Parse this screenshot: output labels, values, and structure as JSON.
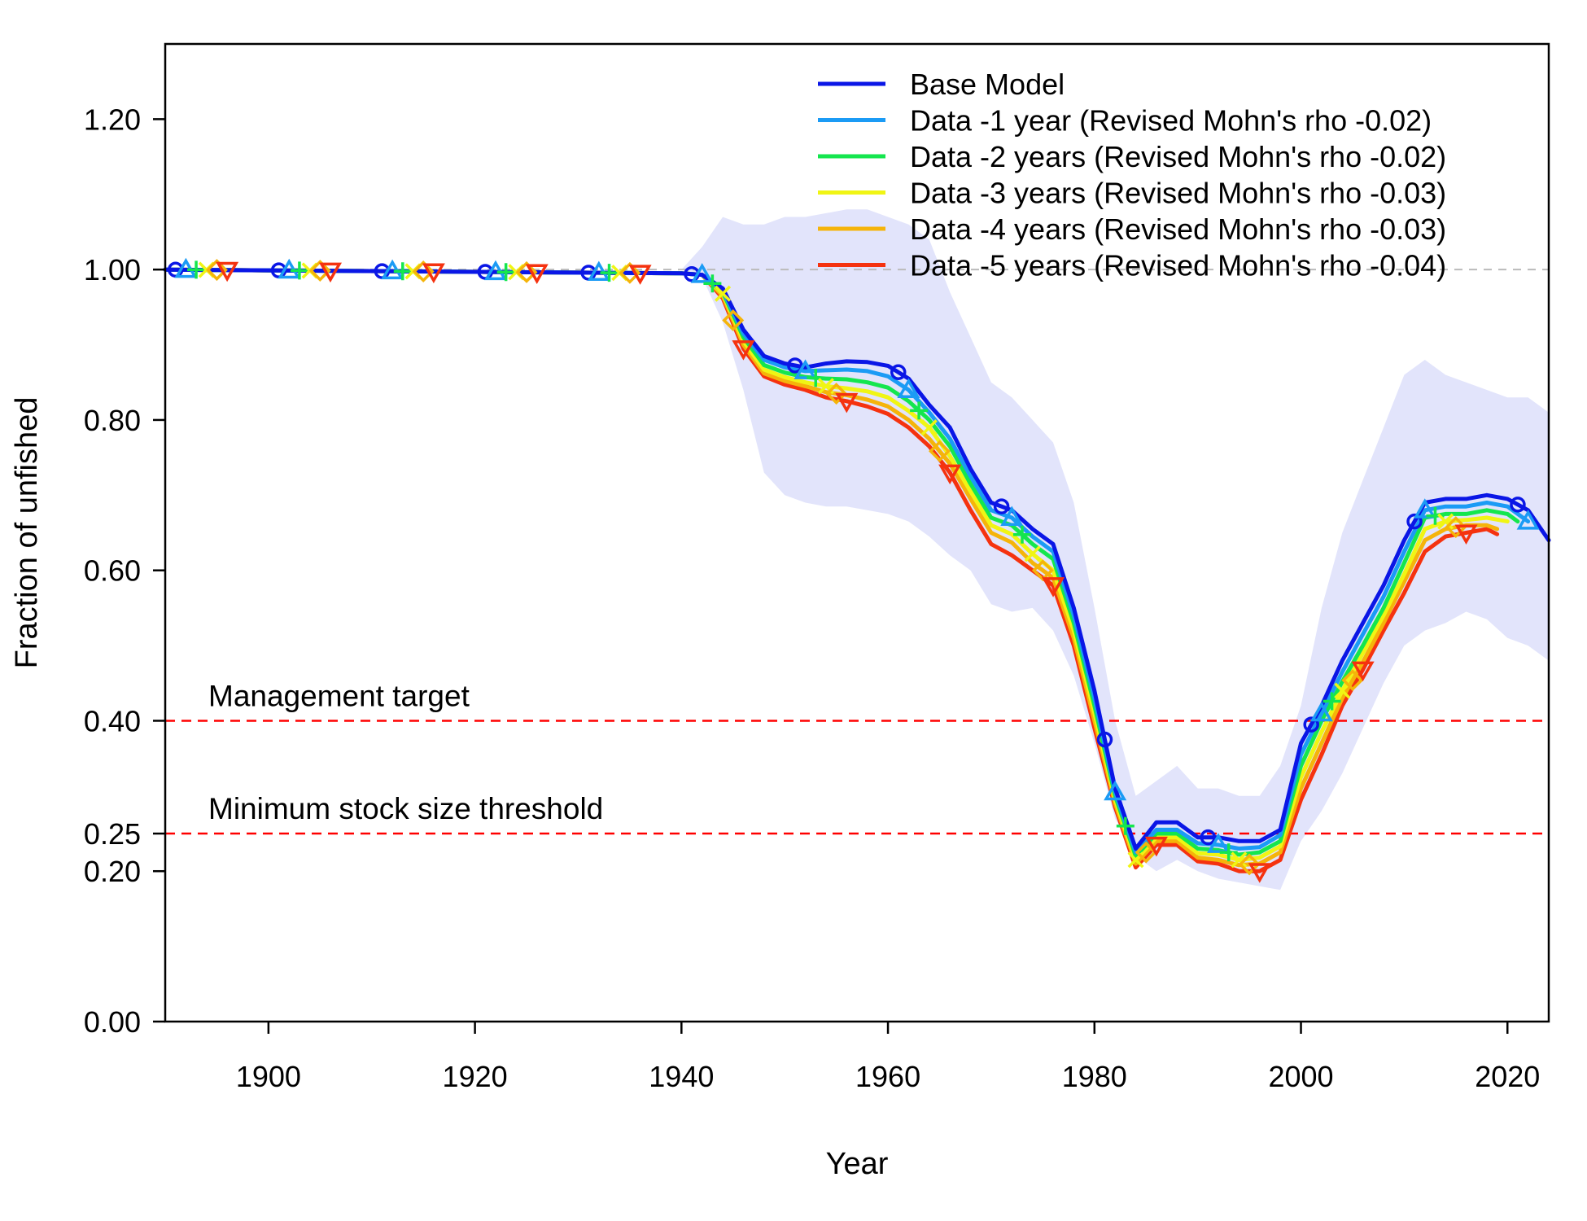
{
  "chart_data": {
    "type": "line",
    "xlabel": "Year",
    "ylabel": "Fraction of unfished",
    "xlim": [
      1890,
      2024
    ],
    "ylim": [
      0,
      1.3
    ],
    "xticks": [
      "1900",
      "1920",
      "1940",
      "1960",
      "1980",
      "2000",
      "2020"
    ],
    "yticks": [
      "0.00",
      "0.20",
      "0.25",
      "0.40",
      "0.60",
      "0.80",
      "1.00",
      "1.20"
    ],
    "reference_lines": [
      {
        "label": "Management target",
        "y": 0.4,
        "color": "#ff0000"
      },
      {
        "label": "Minimum stock size threshold",
        "y": 0.25,
        "color": "#ff0000"
      }
    ],
    "unfished_line": {
      "y": 1.0,
      "color": "#bbbbbb"
    },
    "confidence_band": {
      "color": "#e2e4fb",
      "x": [
        1940,
        1942,
        1944,
        1946,
        1948,
        1950,
        1952,
        1954,
        1956,
        1958,
        1960,
        1962,
        1964,
        1966,
        1968,
        1970,
        1972,
        1974,
        1976,
        1978,
        1980,
        1982,
        1984,
        1986,
        1988,
        1990,
        1992,
        1994,
        1996,
        1998,
        2000,
        2002,
        2004,
        2006,
        2008,
        2010,
        2012,
        2014,
        2016,
        2018,
        2020,
        2022,
        2024
      ],
      "upper": [
        1.0,
        1.03,
        1.07,
        1.06,
        1.06,
        1.07,
        1.07,
        1.075,
        1.08,
        1.08,
        1.07,
        1.06,
        1.04,
        0.97,
        0.91,
        0.85,
        0.83,
        0.8,
        0.77,
        0.69,
        0.55,
        0.4,
        0.3,
        0.32,
        0.34,
        0.31,
        0.31,
        0.3,
        0.3,
        0.34,
        0.42,
        0.55,
        0.65,
        0.72,
        0.79,
        0.86,
        0.88,
        0.86,
        0.85,
        0.84,
        0.83,
        0.83,
        0.81
      ],
      "lower": [
        1.0,
        0.99,
        0.93,
        0.84,
        0.73,
        0.7,
        0.69,
        0.685,
        0.685,
        0.68,
        0.675,
        0.665,
        0.645,
        0.62,
        0.6,
        0.555,
        0.545,
        0.55,
        0.52,
        0.46,
        0.37,
        0.27,
        0.22,
        0.2,
        0.215,
        0.2,
        0.19,
        0.185,
        0.18,
        0.175,
        0.24,
        0.28,
        0.33,
        0.39,
        0.45,
        0.5,
        0.52,
        0.53,
        0.545,
        0.535,
        0.51,
        0.5,
        0.48
      ]
    },
    "series": [
      {
        "name": "Base Model",
        "legend_label": "Base Model",
        "color": "#0a16e6",
        "marker": "circle",
        "x": [
          1890,
          1940,
          1942,
          1944,
          1946,
          1948,
          1950,
          1952,
          1954,
          1956,
          1958,
          1960,
          1962,
          1964,
          1966,
          1968,
          1970,
          1972,
          1974,
          1976,
          1978,
          1980,
          1982,
          1984,
          1986,
          1988,
          1990,
          1992,
          1994,
          1996,
          1998,
          2000,
          2002,
          2004,
          2006,
          2008,
          2010,
          2012,
          2014,
          2016,
          2018,
          2020,
          2022,
          2024
        ],
        "y": [
          1.0,
          0.995,
          0.993,
          0.975,
          0.92,
          0.885,
          0.875,
          0.87,
          0.875,
          0.878,
          0.877,
          0.872,
          0.855,
          0.82,
          0.79,
          0.735,
          0.69,
          0.68,
          0.655,
          0.635,
          0.55,
          0.44,
          0.31,
          0.23,
          0.265,
          0.265,
          0.245,
          0.245,
          0.24,
          0.24,
          0.255,
          0.37,
          0.42,
          0.48,
          0.53,
          0.58,
          0.64,
          0.69,
          0.695,
          0.695,
          0.7,
          0.695,
          0.68,
          0.64
        ]
      },
      {
        "name": "Data -1 year (Revised Mohn's rho -0.02)",
        "legend_label": "Data -1 year (Revised Mohn's rho -0.02)",
        "color": "#1b9bf5",
        "marker": "triangle",
        "x": [
          1890,
          1940,
          1942,
          1944,
          1946,
          1948,
          1950,
          1952,
          1954,
          1956,
          1958,
          1960,
          1962,
          1964,
          1966,
          1968,
          1970,
          1972,
          1974,
          1976,
          1978,
          1980,
          1982,
          1984,
          1986,
          1988,
          1990,
          1992,
          1994,
          1996,
          1998,
          2000,
          2002,
          2004,
          2006,
          2008,
          2010,
          2012,
          2014,
          2016,
          2018,
          2020,
          2022
        ],
        "y": [
          1.0,
          0.995,
          0.993,
          0.972,
          0.915,
          0.88,
          0.87,
          0.865,
          0.866,
          0.867,
          0.865,
          0.858,
          0.84,
          0.81,
          0.775,
          0.725,
          0.68,
          0.67,
          0.645,
          0.625,
          0.54,
          0.43,
          0.305,
          0.225,
          0.255,
          0.255,
          0.237,
          0.235,
          0.23,
          0.232,
          0.248,
          0.355,
          0.41,
          0.465,
          0.515,
          0.565,
          0.625,
          0.68,
          0.685,
          0.685,
          0.69,
          0.685,
          0.665
        ]
      },
      {
        "name": "Data -2 years (Revised Mohn's rho -0.02)",
        "legend_label": "Data -2 years (Revised Mohn's rho -0.02)",
        "color": "#14e64e",
        "marker": "plus",
        "x": [
          1890,
          1940,
          1942,
          1944,
          1946,
          1948,
          1950,
          1952,
          1954,
          1956,
          1958,
          1960,
          1962,
          1964,
          1966,
          1968,
          1970,
          1972,
          1974,
          1976,
          1978,
          1980,
          1982,
          1984,
          1986,
          1988,
          1990,
          1992,
          1994,
          1996,
          1998,
          2000,
          2002,
          2004,
          2006,
          2008,
          2010,
          2012,
          2014,
          2016,
          2018,
          2020,
          2021
        ],
        "y": [
          1.0,
          0.995,
          0.993,
          0.97,
          0.91,
          0.873,
          0.863,
          0.857,
          0.855,
          0.854,
          0.85,
          0.843,
          0.825,
          0.8,
          0.765,
          0.715,
          0.67,
          0.66,
          0.635,
          0.615,
          0.53,
          0.42,
          0.3,
          0.22,
          0.25,
          0.25,
          0.23,
          0.228,
          0.222,
          0.225,
          0.24,
          0.34,
          0.4,
          0.452,
          0.5,
          0.55,
          0.61,
          0.67,
          0.675,
          0.675,
          0.68,
          0.675,
          0.665
        ]
      },
      {
        "name": "Data -3 years (Revised Mohn's rho -0.03)",
        "legend_label": "Data -3 years (Revised Mohn's rho -0.03)",
        "color": "#f0f514",
        "marker": "cross",
        "x": [
          1890,
          1940,
          1942,
          1944,
          1946,
          1948,
          1950,
          1952,
          1954,
          1956,
          1958,
          1960,
          1962,
          1964,
          1966,
          1968,
          1970,
          1972,
          1974,
          1976,
          1978,
          1980,
          1982,
          1984,
          1986,
          1988,
          1990,
          1992,
          1994,
          1996,
          1998,
          2000,
          2002,
          2004,
          2006,
          2008,
          2010,
          2012,
          2014,
          2016,
          2018,
          2020
        ],
        "y": [
          1.0,
          0.995,
          0.993,
          0.968,
          0.905,
          0.867,
          0.857,
          0.85,
          0.845,
          0.842,
          0.838,
          0.83,
          0.812,
          0.79,
          0.752,
          0.705,
          0.66,
          0.648,
          0.622,
          0.6,
          0.52,
          0.41,
          0.295,
          0.215,
          0.245,
          0.245,
          0.224,
          0.222,
          0.215,
          0.218,
          0.233,
          0.325,
          0.385,
          0.44,
          0.49,
          0.54,
          0.595,
          0.655,
          0.665,
          0.667,
          0.67,
          0.665
        ]
      },
      {
        "name": "Data -4 years (Revised Mohn's rho -0.03)",
        "legend_label": "Data -4 years (Revised Mohn's rho -0.03)",
        "color": "#f5b40a",
        "marker": "diamond",
        "x": [
          1890,
          1940,
          1942,
          1944,
          1946,
          1948,
          1950,
          1952,
          1954,
          1956,
          1958,
          1960,
          1962,
          1964,
          1966,
          1968,
          1970,
          1972,
          1974,
          1976,
          1978,
          1980,
          1982,
          1984,
          1986,
          1988,
          1990,
          1992,
          1994,
          1996,
          1998,
          2000,
          2002,
          2004,
          2006,
          2008,
          2010,
          2012,
          2014,
          2016,
          2018,
          2019
        ],
        "y": [
          1.0,
          0.995,
          0.993,
          0.965,
          0.9,
          0.862,
          0.852,
          0.845,
          0.837,
          0.833,
          0.827,
          0.818,
          0.8,
          0.775,
          0.742,
          0.695,
          0.65,
          0.637,
          0.61,
          0.59,
          0.51,
          0.4,
          0.29,
          0.21,
          0.24,
          0.24,
          0.218,
          0.215,
          0.208,
          0.21,
          0.225,
          0.31,
          0.37,
          0.43,
          0.478,
          0.53,
          0.585,
          0.64,
          0.655,
          0.66,
          0.66,
          0.655
        ]
      },
      {
        "name": "Data -5 years (Revised Mohn's rho -0.04)",
        "legend_label": "Data -5 years (Revised Mohn's rho -0.04)",
        "color": "#f5320f",
        "marker": "triangle-down",
        "x": [
          1890,
          1940,
          1942,
          1944,
          1946,
          1948,
          1950,
          1952,
          1954,
          1956,
          1958,
          1960,
          1962,
          1964,
          1966,
          1968,
          1970,
          1972,
          1974,
          1976,
          1978,
          1980,
          1982,
          1984,
          1986,
          1988,
          1990,
          1992,
          1994,
          1996,
          1998,
          2000,
          2002,
          2004,
          2006,
          2008,
          2010,
          2012,
          2014,
          2016,
          2018,
          2019
        ],
        "y": [
          1.0,
          0.995,
          0.993,
          0.962,
          0.895,
          0.858,
          0.847,
          0.84,
          0.83,
          0.825,
          0.818,
          0.808,
          0.79,
          0.765,
          0.73,
          0.68,
          0.635,
          0.62,
          0.6,
          0.58,
          0.5,
          0.39,
          0.285,
          0.205,
          0.235,
          0.235,
          0.213,
          0.21,
          0.2,
          0.2,
          0.215,
          0.295,
          0.355,
          0.42,
          0.468,
          0.52,
          0.57,
          0.625,
          0.645,
          0.65,
          0.655,
          0.648
        ]
      }
    ]
  }
}
